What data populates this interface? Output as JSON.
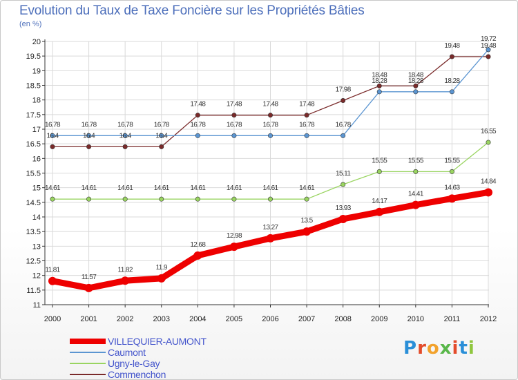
{
  "chart_data": {
    "type": "line",
    "title": "Evolution du Taux de Taxe Foncière sur les Propriétés Bâties",
    "subtitle": "(en %)",
    "xlabel": "",
    "ylabel": "(en %)",
    "x": [
      "2000",
      "2001",
      "2002",
      "2003",
      "2004",
      "2005",
      "2006",
      "2007",
      "2008",
      "2009",
      "2010",
      "2011",
      "2012"
    ],
    "ylim": [
      11,
      20
    ],
    "yticks": [
      "11",
      "11.5",
      "12",
      "12.5",
      "13",
      "13.5",
      "14",
      "14.5",
      "15",
      "15.5",
      "16",
      "16.5",
      "17",
      "17.5",
      "18",
      "18.5",
      "19",
      "19.5",
      "20"
    ],
    "legend_position": "bottom-left",
    "series": [
      {
        "name": "VILLEQUIER-AUMONT",
        "color": "#ee0000",
        "values": [
          11.81,
          11.57,
          11.82,
          11.9,
          12.68,
          12.98,
          13.27,
          13.5,
          13.93,
          14.17,
          14.41,
          14.63,
          14.84
        ],
        "labels": [
          "11.81",
          "11.57",
          "11.82",
          "11.9",
          "12.68",
          "12.98",
          "13.27",
          "13.5",
          "13.93",
          "14.17",
          "14.41",
          "14.63",
          "14.84"
        ]
      },
      {
        "name": "Caumont",
        "color": "#5b95d1",
        "values": [
          16.78,
          16.78,
          16.78,
          16.78,
          16.78,
          16.78,
          16.78,
          16.78,
          16.78,
          18.28,
          18.28,
          18.28,
          19.72
        ],
        "labels": [
          "16.78",
          "16.78",
          "16.78",
          "16.78",
          "16.78",
          "16.78",
          "16.78",
          "16.78",
          "16.78",
          "18.28",
          "18.28",
          "18.28",
          "19.72"
        ]
      },
      {
        "name": "Ugny-le-Gay",
        "color": "#99d460",
        "values": [
          14.61,
          14.61,
          14.61,
          14.61,
          14.61,
          14.61,
          14.61,
          14.61,
          15.11,
          15.55,
          15.55,
          15.55,
          16.55
        ],
        "labels": [
          "14.61",
          "14.61",
          "14.61",
          "14.61",
          "14.61",
          "14.61",
          "14.61",
          "14.61",
          "15.11",
          "15.55",
          "15.55",
          "15.55",
          "16.55"
        ]
      },
      {
        "name": "Commenchon",
        "color": "#7a2a2a",
        "values": [
          16.4,
          16.4,
          16.4,
          16.4,
          17.48,
          17.48,
          17.48,
          17.48,
          17.98,
          18.48,
          18.48,
          19.48,
          19.48
        ],
        "labels": [
          "16.4",
          "16.4",
          "16.4",
          "16.4",
          "17.48",
          "17.48",
          "17.48",
          "17.48",
          "17.98",
          "18.48",
          "18.48",
          "19.48",
          "19.48"
        ]
      }
    ]
  },
  "brand": {
    "letters": [
      "P",
      "r",
      "o",
      "x",
      "i",
      "t",
      "i"
    ],
    "colors": [
      "#2a8fd8",
      "#e34b2a",
      "#f2a22c",
      "#59b74a",
      "#e34b2a",
      "#2a8fd8",
      "#8fc63e"
    ]
  }
}
